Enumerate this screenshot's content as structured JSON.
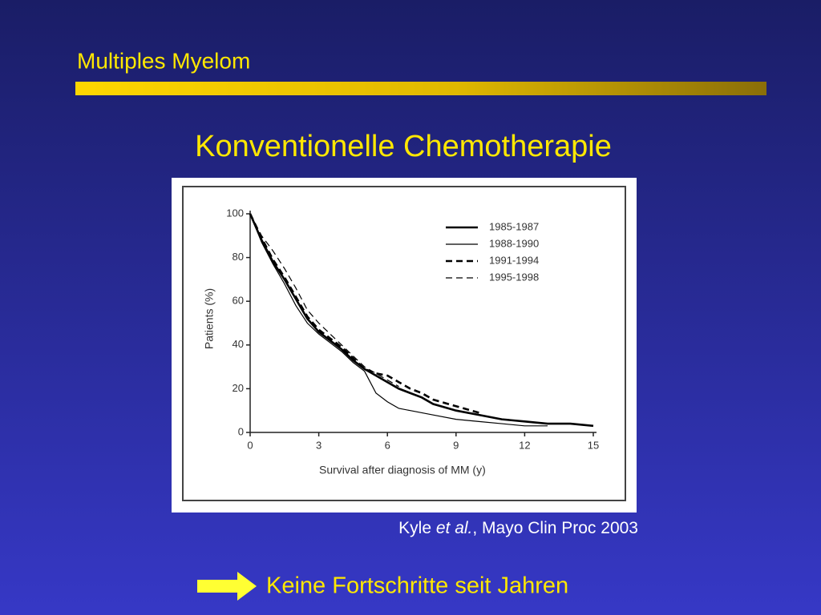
{
  "header": {
    "title": "Multiples Myelom"
  },
  "slide_title": "Konventionelle Chemotherapie",
  "chart_data": {
    "type": "line",
    "x_label": "Survival after diagnosis of MM (y)",
    "y_label": "Patients (%)",
    "xlim": [
      0,
      15
    ],
    "xticks": [
      0,
      3,
      6,
      9,
      12,
      15
    ],
    "ylim": [
      0,
      100
    ],
    "yticks": [
      0,
      20,
      40,
      60,
      80,
      100
    ],
    "x": [
      0,
      0.5,
      1,
      1.5,
      2,
      2.5,
      3,
      3.5,
      4,
      4.5,
      5,
      5.5,
      6,
      6.5,
      7,
      7.5,
      8,
      9,
      10,
      11,
      12,
      13,
      14,
      15
    ],
    "series": [
      {
        "name": "1985-1987",
        "color": "#000000",
        "line_style": "solid",
        "width": 2.6,
        "values": [
          100,
          88,
          78,
          70,
          61,
          52,
          46,
          42,
          38,
          33,
          29,
          26,
          23,
          20,
          18,
          16,
          13,
          10,
          8,
          6,
          5,
          4,
          4,
          3
        ]
      },
      {
        "name": "1988-1990",
        "color": "#000000",
        "line_style": "solid",
        "width": 1.2,
        "values": [
          100,
          87,
          77,
          68,
          58,
          50,
          45,
          41,
          37,
          32,
          28,
          18,
          14,
          11,
          10,
          9,
          8,
          6,
          5,
          4,
          3,
          3,
          null,
          null
        ]
      },
      {
        "name": "1991-1994",
        "color": "#000000",
        "line_style": "dashed",
        "width": 2.6,
        "values": [
          100,
          89,
          79,
          71,
          62,
          53,
          47,
          43,
          39,
          34,
          29,
          27,
          26,
          23,
          20,
          18,
          15,
          12,
          9,
          null,
          null,
          null,
          null,
          null
        ]
      },
      {
        "name": "1995-1998",
        "color": "#000000",
        "line_style": "dashed",
        "width": 1.2,
        "values": [
          100,
          90,
          83,
          75,
          66,
          56,
          50,
          45,
          40,
          35,
          30,
          27,
          24,
          21,
          null,
          null,
          null,
          null,
          null,
          null,
          null,
          null,
          null,
          null
        ]
      }
    ]
  },
  "citation": [
    "Kyle ",
    "et al.",
    ", Mayo Clin Proc 2003"
  ],
  "conclusion": "Keine Fortschritte seit Jahren"
}
